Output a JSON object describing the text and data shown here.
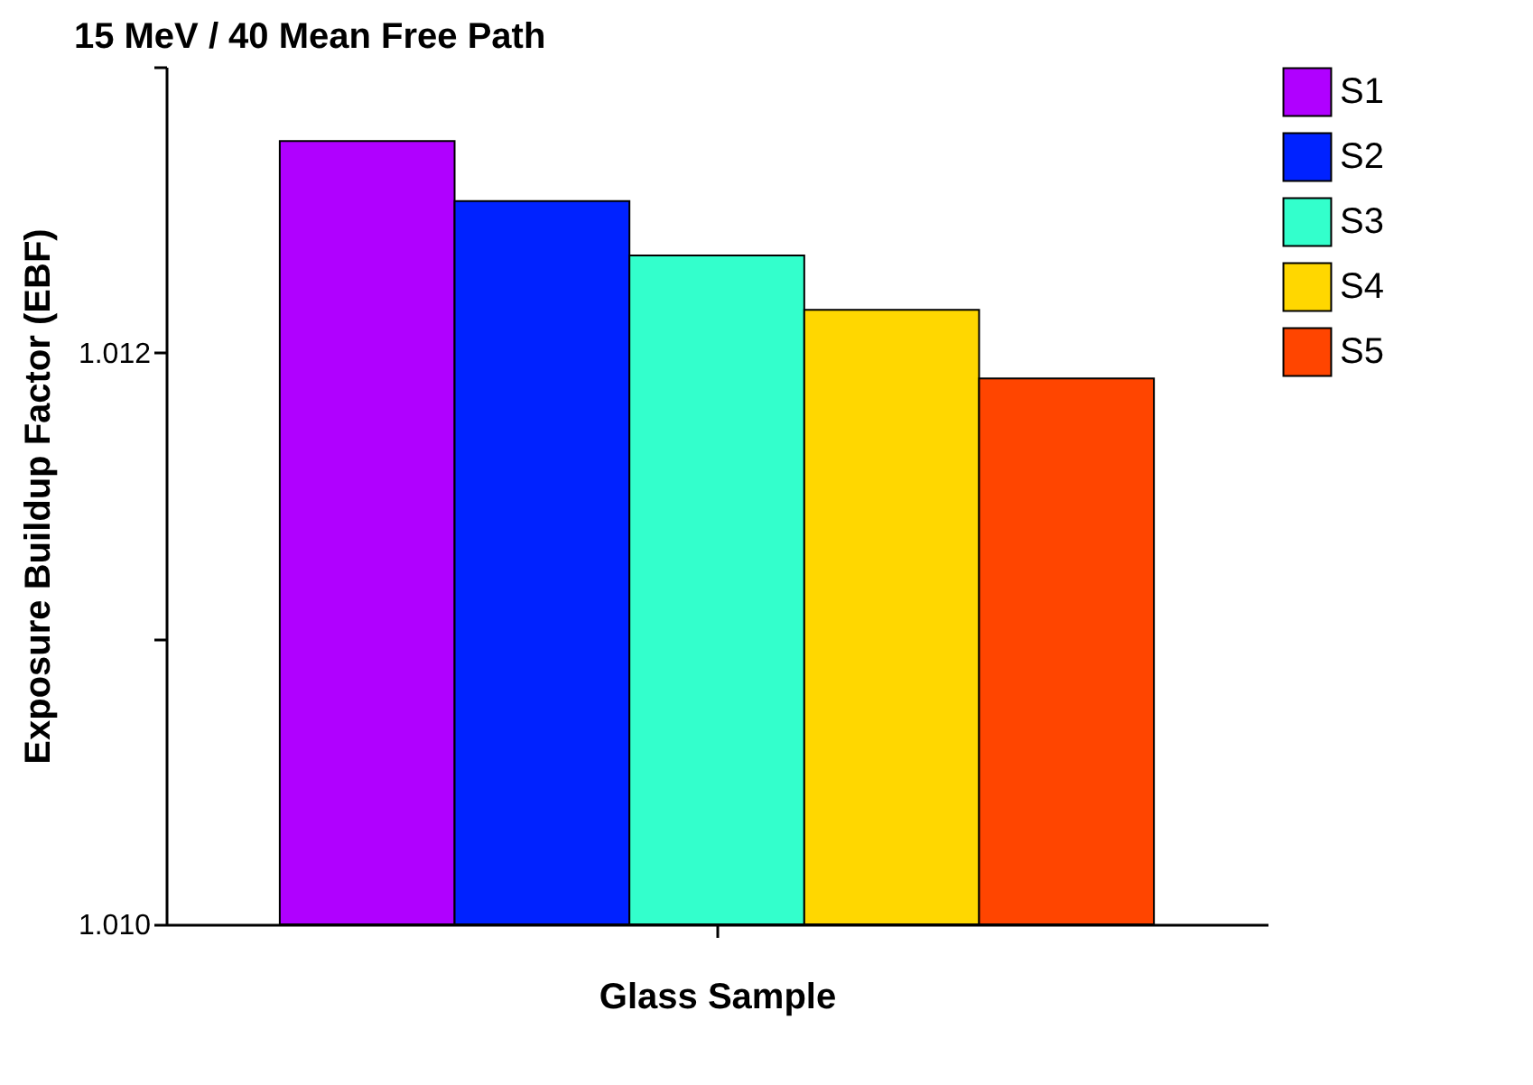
{
  "chart_data": {
    "type": "bar",
    "title": "15 MeV / 40 Mean Free Path",
    "xlabel": "Glass Sample",
    "ylabel": "Exposure Buildup Factor (EBF)",
    "categories": [
      null
    ],
    "series": [
      {
        "name": "S1",
        "color": "#b000ff",
        "values": [
          1.01274
        ]
      },
      {
        "name": "S2",
        "color": "#0022ff",
        "values": [
          1.01253
        ]
      },
      {
        "name": "S3",
        "color": "#33ffcc",
        "values": [
          1.01234
        ]
      },
      {
        "name": "S4",
        "color": "#ffd700",
        "values": [
          1.01215
        ]
      },
      {
        "name": "S5",
        "color": "#ff4500",
        "values": [
          1.01191
        ]
      }
    ],
    "ylim": [
      1.01,
      1.013
    ],
    "yticks": [
      {
        "value": 1.01,
        "label": "1.010"
      },
      {
        "value": 1.011,
        "label": null
      },
      {
        "value": 1.012,
        "label": "1.012"
      },
      {
        "value": 1.013,
        "label": null
      }
    ],
    "tick_labels": "y",
    "grid": false,
    "legend": "top right"
  }
}
